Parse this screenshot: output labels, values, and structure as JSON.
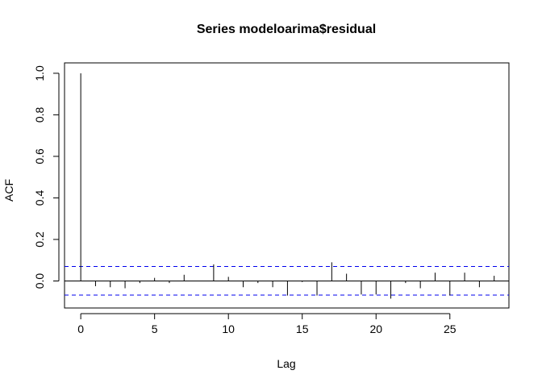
{
  "chart_data": {
    "type": "bar",
    "title": "Series  modeloarima$residual",
    "xlabel": "Lag",
    "ylabel": "ACF",
    "x": [
      0,
      1,
      2,
      3,
      4,
      5,
      6,
      7,
      8,
      9,
      10,
      11,
      12,
      13,
      14,
      15,
      16,
      17,
      18,
      19,
      20,
      21,
      22,
      23,
      24,
      25,
      26,
      27,
      28
    ],
    "values": [
      1.0,
      -0.025,
      -0.03,
      -0.035,
      -0.01,
      0.015,
      -0.01,
      0.03,
      0.0,
      0.08,
      0.02,
      -0.03,
      -0.01,
      -0.03,
      -0.07,
      -0.005,
      -0.07,
      0.09,
      0.035,
      -0.065,
      -0.065,
      -0.085,
      -0.01,
      -0.035,
      0.04,
      -0.07,
      0.04,
      -0.03,
      0.025
    ],
    "confidence_bounds": [
      0.07,
      -0.068
    ],
    "confidence_line_color": "#0000ee",
    "xlim": [
      -1.1,
      29
    ],
    "ylim": [
      -0.13,
      1.05
    ],
    "xticks": [
      0,
      5,
      10,
      15,
      20,
      25
    ],
    "xtick_labels": [
      "0",
      "5",
      "10",
      "15",
      "20",
      "25"
    ],
    "yticks": [
      0.0,
      0.2,
      0.4,
      0.6,
      0.8,
      1.0
    ],
    "ytick_labels": [
      "0.0",
      "0.2",
      "0.4",
      "0.6",
      "0.8",
      "1.0"
    ],
    "grid": false
  }
}
